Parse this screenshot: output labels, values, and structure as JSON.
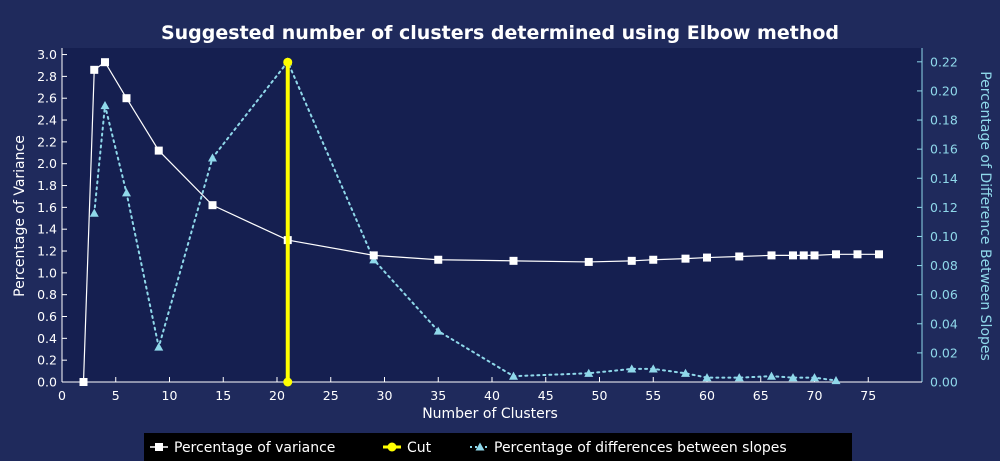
{
  "chart_data": {
    "type": "line",
    "title": "Suggested number of clusters determined using Elbow method",
    "xlabel": "Number of Clusters",
    "ylabel": "Percentage of Variance",
    "y2label": "Percentage of Difference Between Slopes",
    "xlim": [
      0,
      80
    ],
    "ylim": [
      0,
      3.0
    ],
    "y2lim": [
      0,
      0.225
    ],
    "x_ticks": [
      0,
      5,
      10,
      15,
      20,
      25,
      30,
      35,
      40,
      45,
      50,
      55,
      60,
      65,
      70,
      75
    ],
    "y_ticks": [
      0.0,
      0.2,
      0.4,
      0.6,
      0.8,
      1.0,
      1.2,
      1.4,
      1.6,
      1.8,
      2.0,
      2.2,
      2.4,
      2.6,
      2.8,
      3.0
    ],
    "y2_ticks": [
      0.0,
      0.02,
      0.04,
      0.06,
      0.08,
      0.1,
      0.12,
      0.14,
      0.16,
      0.18,
      0.2,
      0.22
    ],
    "grid": false,
    "legend_position": "bottom",
    "series": [
      {
        "name": "Percentage of variance",
        "axis": "left",
        "color": "#ffffff",
        "marker": "square",
        "points": [
          [
            2,
            0.0
          ],
          [
            3,
            2.86
          ],
          [
            4,
            2.93
          ],
          [
            6,
            2.6
          ],
          [
            9,
            2.12
          ],
          [
            14,
            1.62
          ],
          [
            21,
            1.3
          ],
          [
            29,
            1.16
          ],
          [
            35,
            1.12
          ],
          [
            42,
            1.11
          ],
          [
            49,
            1.1
          ],
          [
            53,
            1.11
          ],
          [
            55,
            1.12
          ],
          [
            58,
            1.13
          ],
          [
            60,
            1.14
          ],
          [
            63,
            1.15
          ],
          [
            66,
            1.16
          ],
          [
            68,
            1.16
          ],
          [
            69,
            1.16
          ],
          [
            70,
            1.16
          ],
          [
            72,
            1.17
          ],
          [
            74,
            1.17
          ],
          [
            76,
            1.17
          ]
        ]
      },
      {
        "name": "Cut",
        "axis": "left",
        "color": "#ffff00",
        "marker": "circle",
        "points": [
          [
            21,
            0.0
          ],
          [
            21,
            2.93
          ]
        ]
      },
      {
        "name": "Percentage of differences between slopes",
        "axis": "right",
        "color": "#8fd8ea",
        "marker": "triangle",
        "points": [
          [
            3,
            0.116
          ],
          [
            4,
            0.19
          ],
          [
            6,
            0.13
          ],
          [
            9,
            0.024
          ],
          [
            14,
            0.154
          ],
          [
            21,
            0.22
          ],
          [
            29,
            0.084
          ],
          [
            35,
            0.035
          ],
          [
            42,
            0.004
          ],
          [
            49,
            0.006
          ],
          [
            53,
            0.009
          ],
          [
            55,
            0.009
          ],
          [
            58,
            0.006
          ],
          [
            60,
            0.003
          ],
          [
            63,
            0.003
          ],
          [
            66,
            0.004
          ],
          [
            68,
            0.003
          ],
          [
            70,
            0.003
          ],
          [
            72,
            0.001
          ]
        ]
      }
    ]
  }
}
